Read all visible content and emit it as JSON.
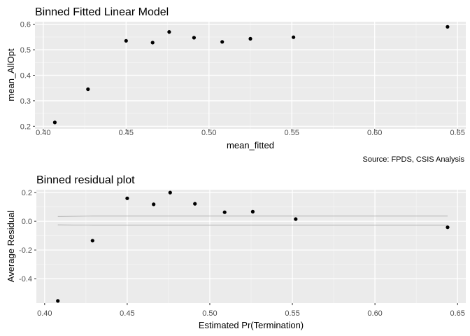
{
  "chart_data": [
    {
      "type": "scatter",
      "title": "Binned Fitted Linear Model",
      "xlabel": "mean_fitted",
      "ylabel": "mean_AllOpt",
      "caption": "Source: FPDS, CSIS Analysis",
      "xlim": [
        0.395,
        0.655
      ],
      "ylim": [
        0.19,
        0.61
      ],
      "xticks": [
        0.4,
        0.45,
        0.5,
        0.55,
        0.6,
        0.65
      ],
      "xtick_labels": [
        "0.40",
        "0.45",
        "0.50",
        "0.55",
        "0.60",
        "0.65"
      ],
      "yticks": [
        0.2,
        0.3,
        0.4,
        0.5,
        0.6
      ],
      "ytick_labels": [
        "0.2",
        "0.3",
        "0.4",
        "0.5",
        "0.6"
      ],
      "grid": true,
      "points": [
        {
          "x": 0.407,
          "y": 0.215
        },
        {
          "x": 0.427,
          "y": 0.345
        },
        {
          "x": 0.45,
          "y": 0.535
        },
        {
          "x": 0.466,
          "y": 0.528
        },
        {
          "x": 0.476,
          "y": 0.57
        },
        {
          "x": 0.491,
          "y": 0.547
        },
        {
          "x": 0.508,
          "y": 0.531
        },
        {
          "x": 0.525,
          "y": 0.543
        },
        {
          "x": 0.551,
          "y": 0.549
        },
        {
          "x": 0.644,
          "y": 0.59
        }
      ]
    },
    {
      "type": "scatter",
      "title": "Binned residual plot",
      "xlabel": "Estimated Pr(Termination)",
      "ylabel": "Average Residual",
      "xlim": [
        0.395,
        0.655
      ],
      "ylim": [
        -0.57,
        0.22
      ],
      "xticks": [
        0.4,
        0.45,
        0.5,
        0.55,
        0.6,
        0.65
      ],
      "xtick_labels": [
        "0.40",
        "0.45",
        "0.50",
        "0.55",
        "0.60",
        "0.65"
      ],
      "yticks": [
        0.2,
        0.0,
        -0.2,
        -0.4
      ],
      "ytick_labels": [
        "0.2",
        "0.0",
        "-0.2",
        "-0.4"
      ],
      "grid": true,
      "points": [
        {
          "x": 0.408,
          "y": -0.555
        },
        {
          "x": 0.429,
          "y": -0.135
        },
        {
          "x": 0.45,
          "y": 0.16
        },
        {
          "x": 0.466,
          "y": 0.118
        },
        {
          "x": 0.476,
          "y": 0.2
        },
        {
          "x": 0.491,
          "y": 0.122
        },
        {
          "x": 0.509,
          "y": 0.063
        },
        {
          "x": 0.526,
          "y": 0.067
        },
        {
          "x": 0.552,
          "y": 0.015
        },
        {
          "x": 0.644,
          "y": -0.042
        }
      ],
      "bands": {
        "color": "#a6a6a6",
        "upper": [
          {
            "x": 0.408,
            "y": 0.033
          },
          {
            "x": 0.429,
            "y": 0.036
          },
          {
            "x": 0.644,
            "y": 0.036
          }
        ],
        "lower": [
          {
            "x": 0.408,
            "y": -0.025
          },
          {
            "x": 0.429,
            "y": -0.027
          },
          {
            "x": 0.644,
            "y": -0.027
          }
        ]
      }
    }
  ],
  "colors": {
    "panel_bg": "#ebebeb",
    "grid_major": "#ffffff",
    "point": "#000000",
    "tick_text": "#4d4d4d"
  }
}
